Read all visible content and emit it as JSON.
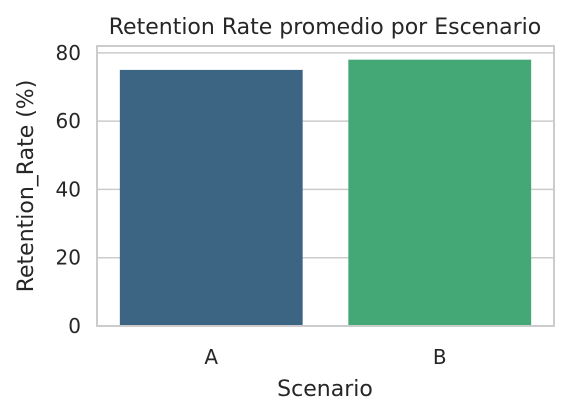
{
  "chart_data": {
    "type": "bar",
    "title": "Retention Rate promedio por Escenario",
    "xlabel": "Scenario",
    "ylabel": "Retention_Rate (%)",
    "categories": [
      "A",
      "B"
    ],
    "values": [
      75,
      78
    ],
    "ylim": [
      0,
      82
    ],
    "yticks": [
      0,
      20,
      40,
      60,
      80
    ],
    "grid": true,
    "colors": [
      "#3b6583",
      "#44a876"
    ]
  }
}
